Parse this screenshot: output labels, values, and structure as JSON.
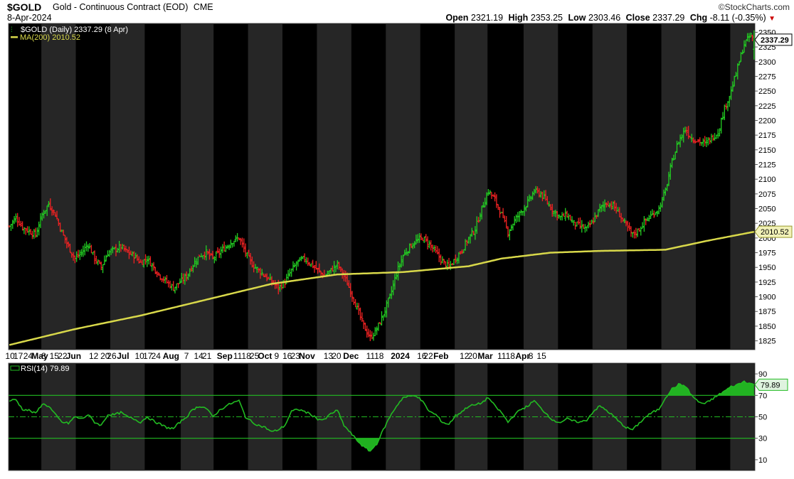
{
  "header": {
    "symbol": "$GOLD",
    "description": "Gold - Continuous Contract (EOD)",
    "exchange": "CME",
    "date": "8-Apr-2024",
    "open_label": "Open",
    "open": "2321.19",
    "high_label": "High",
    "high": "2353.25",
    "low_label": "Low",
    "low": "2303.46",
    "close_label": "Close",
    "close": "2337.29",
    "chg_label": "Chg",
    "chg": "-8.11 (-0.35%)",
    "brand": "©StockCharts.com"
  },
  "legend": {
    "price": "$GOLD (Daily) 2337.29 (8 Apr)",
    "ma": "MA(200) 2010.52",
    "rsi": "RSI(14) 79.89"
  },
  "badges": {
    "price": "2337.29",
    "ma": "2010.52",
    "rsi": "79.89"
  },
  "colors": {
    "up": "#22cc22",
    "down": "#ee2222",
    "ma": "#d8d84a",
    "rsi": "#22bb22",
    "band_dark": "#000000",
    "band_light": "#262626"
  },
  "chart_data": [
    {
      "type": "candlestick",
      "series_name": "$GOLD (Daily)",
      "ylim": [
        1810,
        2365
      ],
      "y_ticks": [
        1825,
        1850,
        1875,
        1900,
        1925,
        1950,
        1975,
        2000,
        2025,
        2050,
        2075,
        2100,
        2125,
        2150,
        2175,
        2200,
        2225,
        2250,
        2275,
        2300,
        2325,
        2350
      ],
      "x_ticks": [
        "10",
        "17",
        "24",
        "May",
        "8",
        "15",
        "22",
        "Jun",
        "12",
        "20",
        "26",
        "Jul",
        "10",
        "17",
        "24",
        "Aug",
        "7",
        "14",
        "21",
        "Sep",
        "11",
        "18",
        "25",
        "Oct",
        "9",
        "16",
        "23",
        "Nov",
        "13",
        "20",
        "Dec",
        "11",
        "18",
        "2024",
        "16",
        "22",
        "Feb",
        "12",
        "20",
        "Mar",
        "11",
        "18",
        "Apr",
        "8",
        "15"
      ],
      "close_path": [
        [
          0,
          2020
        ],
        [
          4,
          2035
        ],
        [
          8,
          2018
        ],
        [
          12,
          2012
        ],
        [
          16,
          2005
        ],
        [
          20,
          2040
        ],
        [
          24,
          2058
        ],
        [
          28,
          2040
        ],
        [
          32,
          2010
        ],
        [
          36,
          1985
        ],
        [
          40,
          1965
        ],
        [
          44,
          1975
        ],
        [
          48,
          1990
        ],
        [
          52,
          1965
        ],
        [
          56,
          1950
        ],
        [
          60,
          1975
        ],
        [
          64,
          1980
        ],
        [
          68,
          1985
        ],
        [
          72,
          1975
        ],
        [
          76,
          1970
        ],
        [
          80,
          1958
        ],
        [
          84,
          1965
        ],
        [
          88,
          1950
        ],
        [
          92,
          1935
        ],
        [
          96,
          1925
        ],
        [
          100,
          1915
        ],
        [
          104,
          1925
        ],
        [
          108,
          1935
        ],
        [
          112,
          1955
        ],
        [
          116,
          1970
        ],
        [
          120,
          1975
        ],
        [
          124,
          1965
        ],
        [
          128,
          1975
        ],
        [
          132,
          1985
        ],
        [
          136,
          1995
        ],
        [
          140,
          2000
        ],
        [
          144,
          1975
        ],
        [
          148,
          1955
        ],
        [
          152,
          1945
        ],
        [
          156,
          1935
        ],
        [
          160,
          1925
        ],
        [
          164,
          1915
        ],
        [
          168,
          1925
        ],
        [
          172,
          1945
        ],
        [
          176,
          1960
        ],
        [
          180,
          1965
        ],
        [
          184,
          1955
        ],
        [
          188,
          1945
        ],
        [
          192,
          1935
        ],
        [
          196,
          1945
        ],
        [
          200,
          1955
        ],
        [
          204,
          1935
        ],
        [
          208,
          1910
        ],
        [
          212,
          1880
        ],
        [
          216,
          1850
        ],
        [
          220,
          1830
        ],
        [
          224,
          1845
        ],
        [
          228,
          1870
        ],
        [
          232,
          1900
        ],
        [
          236,
          1940
        ],
        [
          240,
          1970
        ],
        [
          244,
          1985
        ],
        [
          248,
          1995
        ],
        [
          252,
          2000
        ],
        [
          256,
          1990
        ],
        [
          260,
          1975
        ],
        [
          264,
          1960
        ],
        [
          268,
          1950
        ],
        [
          272,
          1965
        ],
        [
          276,
          1980
        ],
        [
          280,
          2000
        ],
        [
          284,
          2015
        ],
        [
          288,
          2050
        ],
        [
          292,
          2080
        ],
        [
          296,
          2065
        ],
        [
          300,
          2040
        ],
        [
          304,
          2010
        ],
        [
          308,
          2030
        ],
        [
          312,
          2045
        ],
        [
          316,
          2060
        ],
        [
          320,
          2080
        ],
        [
          324,
          2075
        ],
        [
          328,
          2060
        ],
        [
          332,
          2045
        ],
        [
          336,
          2035
        ],
        [
          340,
          2040
        ],
        [
          344,
          2025
        ],
        [
          348,
          2020
        ],
        [
          352,
          2015
        ],
        [
          356,
          2030
        ],
        [
          360,
          2050
        ],
        [
          364,
          2060
        ],
        [
          368,
          2055
        ],
        [
          372,
          2040
        ],
        [
          376,
          2020
        ],
        [
          380,
          2005
        ],
        [
          384,
          2015
        ],
        [
          388,
          2030
        ],
        [
          392,
          2040
        ],
        [
          396,
          2050
        ],
        [
          400,
          2080
        ],
        [
          404,
          2130
        ],
        [
          408,
          2165
        ],
        [
          412,
          2185
        ],
        [
          416,
          2170
        ],
        [
          420,
          2165
        ],
        [
          424,
          2160
        ],
        [
          428,
          2170
        ],
        [
          432,
          2180
        ],
        [
          436,
          2220
        ],
        [
          440,
          2250
        ],
        [
          444,
          2290
        ],
        [
          448,
          2330
        ],
        [
          452,
          2345
        ],
        [
          454,
          2337
        ]
      ],
      "ma200": {
        "name": "MA(200)",
        "path": [
          [
            0,
            1818
          ],
          [
            40,
            1845
          ],
          [
            80,
            1868
          ],
          [
            120,
            1895
          ],
          [
            160,
            1922
          ],
          [
            200,
            1938
          ],
          [
            240,
            1942
          ],
          [
            280,
            1952
          ],
          [
            300,
            1965
          ],
          [
            330,
            1975
          ],
          [
            360,
            1978
          ],
          [
            400,
            1980
          ],
          [
            425,
            1995
          ],
          [
            454,
            2010.52
          ]
        ]
      }
    },
    {
      "type": "line",
      "series_name": "RSI(14)",
      "ylim": [
        0,
        100
      ],
      "y_ticks": [
        10,
        30,
        50,
        70,
        90
      ],
      "levels": [
        30,
        50,
        70
      ],
      "path": [
        [
          0,
          65
        ],
        [
          4,
          66
        ],
        [
          8,
          57
        ],
        [
          12,
          56
        ],
        [
          16,
          53
        ],
        [
          20,
          62
        ],
        [
          24,
          60
        ],
        [
          28,
          52
        ],
        [
          32,
          45
        ],
        [
          36,
          44
        ],
        [
          40,
          50
        ],
        [
          44,
          48
        ],
        [
          48,
          52
        ],
        [
          52,
          45
        ],
        [
          56,
          42
        ],
        [
          60,
          52
        ],
        [
          64,
          52
        ],
        [
          68,
          54
        ],
        [
          72,
          50
        ],
        [
          76,
          48
        ],
        [
          80,
          45
        ],
        [
          84,
          50
        ],
        [
          88,
          46
        ],
        [
          92,
          43
        ],
        [
          96,
          40
        ],
        [
          100,
          39
        ],
        [
          104,
          45
        ],
        [
          108,
          50
        ],
        [
          112,
          57
        ],
        [
          116,
          60
        ],
        [
          120,
          58
        ],
        [
          124,
          50
        ],
        [
          128,
          56
        ],
        [
          132,
          60
        ],
        [
          136,
          63
        ],
        [
          140,
          65
        ],
        [
          144,
          50
        ],
        [
          148,
          45
        ],
        [
          152,
          42
        ],
        [
          156,
          40
        ],
        [
          160,
          36
        ],
        [
          164,
          38
        ],
        [
          168,
          42
        ],
        [
          172,
          55
        ],
        [
          176,
          57
        ],
        [
          180,
          55
        ],
        [
          184,
          52
        ],
        [
          188,
          48
        ],
        [
          192,
          47
        ],
        [
          196,
          53
        ],
        [
          200,
          56
        ],
        [
          204,
          42
        ],
        [
          208,
          35
        ],
        [
          212,
          28
        ],
        [
          216,
          22
        ],
        [
          220,
          18
        ],
        [
          224,
          25
        ],
        [
          228,
          38
        ],
        [
          232,
          50
        ],
        [
          236,
          60
        ],
        [
          240,
          68
        ],
        [
          244,
          69
        ],
        [
          248,
          70
        ],
        [
          252,
          64
        ],
        [
          256,
          55
        ],
        [
          260,
          52
        ],
        [
          264,
          45
        ],
        [
          268,
          43
        ],
        [
          272,
          51
        ],
        [
          276,
          55
        ],
        [
          280,
          60
        ],
        [
          284,
          61
        ],
        [
          288,
          63
        ],
        [
          292,
          68
        ],
        [
          296,
          60
        ],
        [
          300,
          54
        ],
        [
          304,
          45
        ],
        [
          308,
          52
        ],
        [
          312,
          57
        ],
        [
          316,
          60
        ],
        [
          320,
          65
        ],
        [
          324,
          58
        ],
        [
          328,
          52
        ],
        [
          332,
          46
        ],
        [
          336,
          45
        ],
        [
          340,
          48
        ],
        [
          344,
          46
        ],
        [
          348,
          45
        ],
        [
          352,
          47
        ],
        [
          356,
          55
        ],
        [
          360,
          60
        ],
        [
          364,
          56
        ],
        [
          368,
          51
        ],
        [
          372,
          45
        ],
        [
          376,
          40
        ],
        [
          380,
          38
        ],
        [
          384,
          44
        ],
        [
          388,
          50
        ],
        [
          392,
          54
        ],
        [
          396,
          57
        ],
        [
          400,
          68
        ],
        [
          404,
          76
        ],
        [
          408,
          80
        ],
        [
          412,
          79
        ],
        [
          416,
          70
        ],
        [
          420,
          64
        ],
        [
          424,
          62
        ],
        [
          428,
          66
        ],
        [
          432,
          70
        ],
        [
          436,
          74
        ],
        [
          440,
          78
        ],
        [
          444,
          80
        ],
        [
          448,
          83
        ],
        [
          452,
          81
        ],
        [
          454,
          79.89
        ]
      ]
    }
  ]
}
